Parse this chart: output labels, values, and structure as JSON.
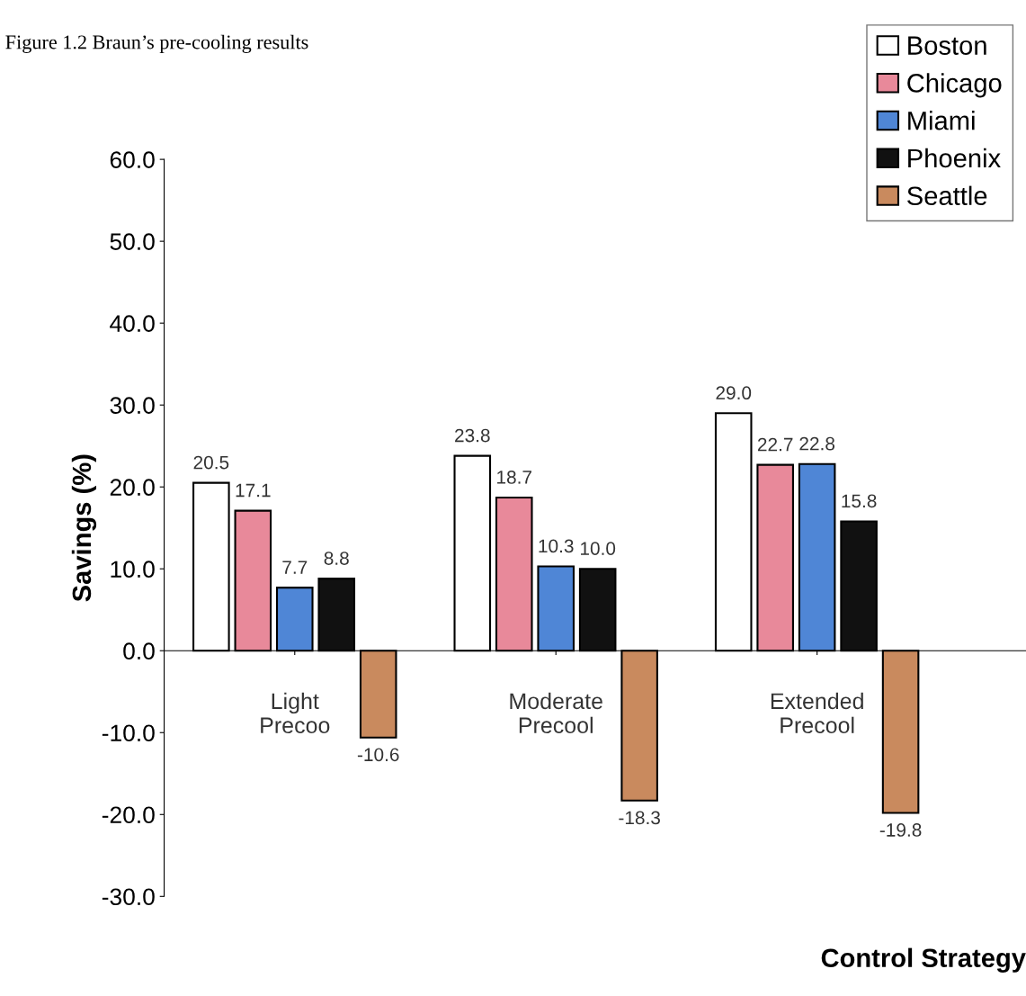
{
  "chart_data": {
    "type": "bar",
    "title": "Figure 1.2 Braun’s pre-cooling results",
    "ylabel": "Savings (%)",
    "xlabel": "Control Strategy",
    "categories": [
      "Light\nPrecoo",
      "Moderate\nPrecool",
      "Extended\nPrecool"
    ],
    "series": [
      {
        "name": "Boston",
        "color": "#ffffff",
        "values": [
          20.5,
          23.8,
          29.0
        ],
        "value_labels": [
          "20.5",
          "23.8",
          "29.0"
        ]
      },
      {
        "name": "Chicago",
        "color": "#e8899a",
        "values": [
          17.1,
          18.7,
          22.7
        ],
        "value_labels": [
          "17.1",
          "18.7",
          "22.7"
        ]
      },
      {
        "name": "Miami",
        "color": "#4f86d6",
        "values": [
          7.7,
          10.3,
          22.8
        ],
        "value_labels": [
          "7.7",
          "10.3",
          "22.8"
        ]
      },
      {
        "name": "Phoenix",
        "color": "#111111",
        "values": [
          8.8,
          10.0,
          15.8
        ],
        "value_labels": [
          "8.8",
          "10.0",
          "15.8"
        ]
      },
      {
        "name": "Seattle",
        "color": "#c98a5e",
        "values": [
          -10.6,
          -18.3,
          -19.8
        ],
        "value_labels": [
          "-10.6",
          "-18.3",
          "-19.8"
        ]
      }
    ],
    "ylim": [
      -30,
      60
    ],
    "yticks": [
      {
        "value": -30,
        "label": "-30.0"
      },
      {
        "value": -20,
        "label": "-20.0"
      },
      {
        "value": -10,
        "label": "-10.0"
      },
      {
        "value": 0,
        "label": "0.0"
      },
      {
        "value": 10,
        "label": "10.0"
      },
      {
        "value": 20,
        "label": "20.0"
      },
      {
        "value": 30,
        "label": "30.0"
      },
      {
        "value": 40,
        "label": "40.0"
      },
      {
        "value": 50,
        "label": "50.0"
      },
      {
        "value": 60,
        "label": "60.0"
      }
    ],
    "grid": false,
    "legend": "top right"
  }
}
